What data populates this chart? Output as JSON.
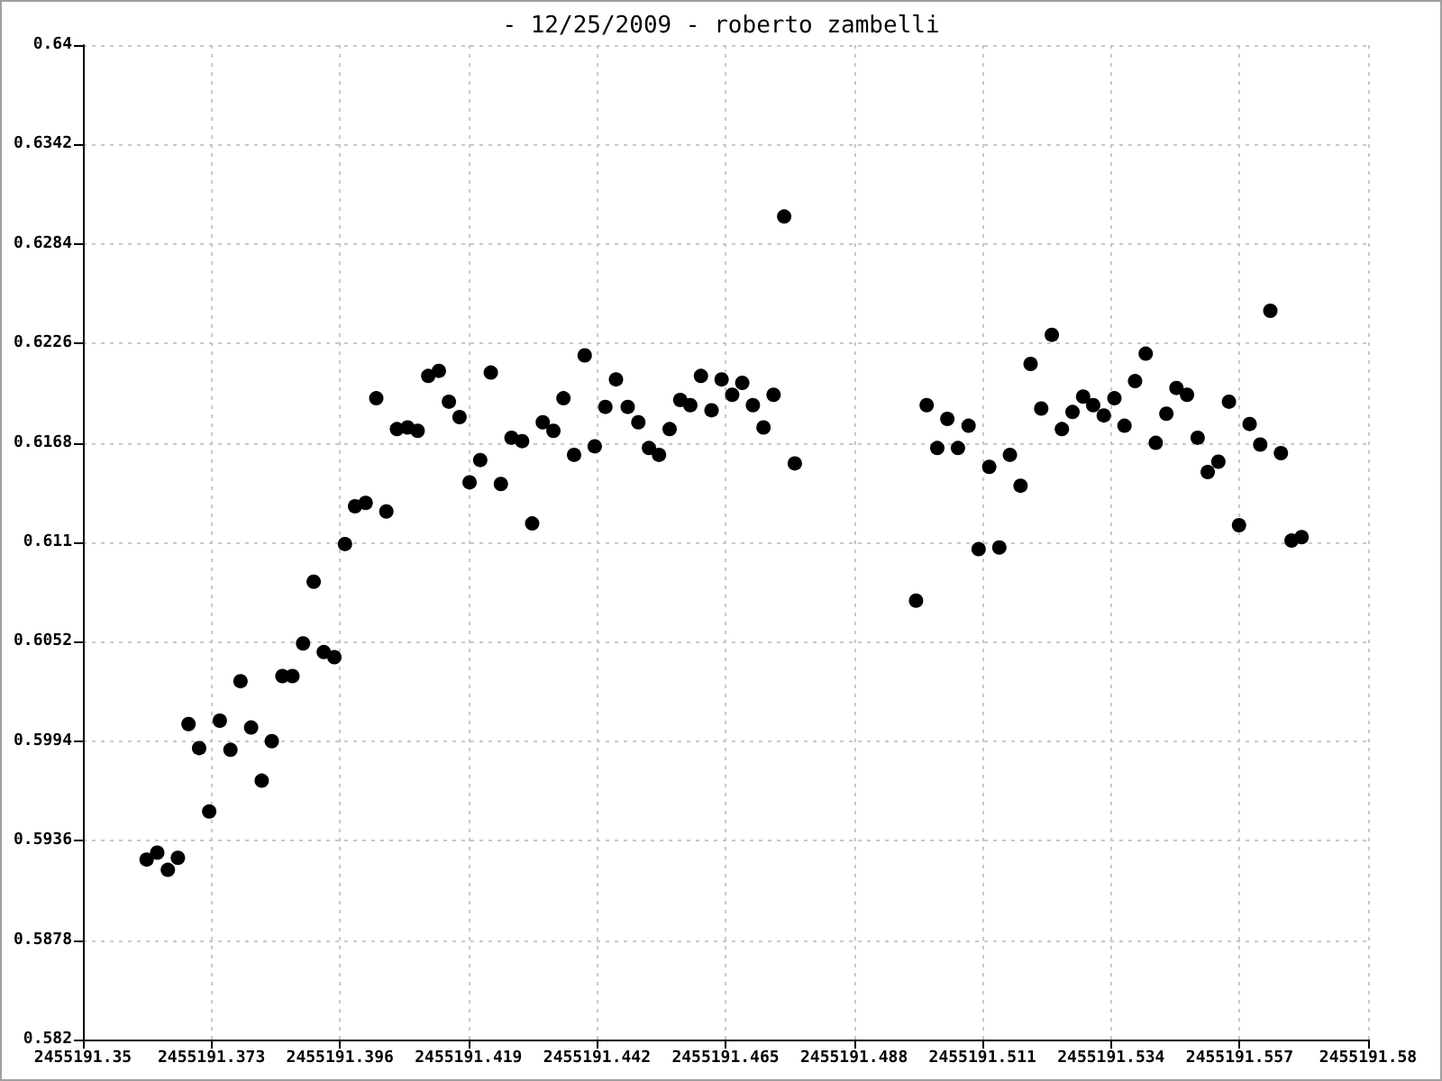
{
  "chart_data": {
    "type": "scatter",
    "title": "- 12/25/2009 - roberto zambelli",
    "series": [
      {
        "color": "#000000",
        "x": [
          2455191.3614,
          2455191.3633,
          2455191.3652,
          2455191.367,
          2455191.3689,
          2455191.3708,
          2455191.3726,
          2455191.3745,
          2455191.3764,
          2455191.3782,
          2455191.3801,
          2455191.382,
          2455191.3838,
          2455191.3857,
          2455191.3875,
          2455191.3894,
          2455191.3913,
          2455191.3931,
          2455191.395,
          2455191.3969,
          2455191.3987,
          2455191.4006,
          2455191.4025,
          2455191.4043,
          2455191.4062,
          2455191.4081,
          2455191.4099,
          2455191.4118,
          2455191.4137,
          2455191.4155,
          2455191.4174,
          2455191.4192,
          2455191.4211,
          2455191.423,
          2455191.4248,
          2455191.4267,
          2455191.4286,
          2455191.4304,
          2455191.4323,
          2455191.4342,
          2455191.436,
          2455191.4379,
          2455191.4398,
          2455191.4416,
          2455191.4435,
          2455191.4454,
          2455191.4475,
          2455191.4494,
          2455191.4513,
          2455191.4531,
          2455191.455,
          2455191.4569,
          2455191.4587,
          2455191.4606,
          2455191.4625,
          2455191.4643,
          2455191.4662,
          2455191.468,
          2455191.4699,
          2455191.4718,
          2455191.4736,
          2455191.4755,
          2455191.4774,
          2455191.4991,
          2455191.501,
          2455191.5029,
          2455191.5047,
          2455191.5066,
          2455191.5085,
          2455191.5103,
          2455191.5122,
          2455191.514,
          2455191.5159,
          2455191.5178,
          2455191.5196,
          2455191.5215,
          2455191.5234,
          2455191.5252,
          2455191.5271,
          2455191.529,
          2455191.5308,
          2455191.5327,
          2455191.5346,
          2455191.5364,
          2455191.5383,
          2455191.5402,
          2455191.542,
          2455191.5439,
          2455191.5457,
          2455191.5476,
          2455191.5495,
          2455191.5513,
          2455191.5532,
          2455191.5551,
          2455191.5569,
          2455191.5588,
          2455191.5607,
          2455191.5625,
          2455191.5644,
          2455191.5663,
          2455191.5681
        ],
        "values": [
          0.5925,
          0.5929,
          0.5919,
          0.5926,
          0.6004,
          0.599,
          0.5953,
          0.6006,
          0.5989,
          0.6029,
          0.6002,
          0.5971,
          0.5994,
          0.6032,
          0.6032,
          0.6051,
          0.6087,
          0.6046,
          0.6043,
          0.6109,
          0.6131,
          0.6133,
          0.6194,
          0.6128,
          0.6176,
          0.6177,
          0.6175,
          0.6207,
          0.621,
          0.6192,
          0.6183,
          0.6145,
          0.6158,
          0.6209,
          0.6144,
          0.6171,
          0.6169,
          0.6121,
          0.618,
          0.6175,
          0.6194,
          0.6161,
          0.6219,
          0.6166,
          0.6189,
          0.6205,
          0.6189,
          0.618,
          0.6165,
          0.6161,
          0.6176,
          0.6193,
          0.619,
          0.6207,
          0.6187,
          0.6205,
          0.6196,
          0.6203,
          0.619,
          0.6177,
          0.6196,
          0.63,
          0.6156,
          0.6076,
          0.619,
          0.6165,
          0.6182,
          0.6165,
          0.6178,
          0.6106,
          0.6154,
          0.6107,
          0.6161,
          0.6143,
          0.6214,
          0.6188,
          0.6231,
          0.6176,
          0.6186,
          0.6195,
          0.619,
          0.6184,
          0.6194,
          0.6178,
          0.6204,
          0.622,
          0.6168,
          0.6185,
          0.62,
          0.6196,
          0.6171,
          0.6151,
          0.6157,
          0.6192,
          0.612,
          0.6179,
          0.6167,
          0.6245,
          0.6162,
          0.6111,
          0.6113
        ]
      }
    ],
    "xlim": [
      2455191.35,
      2455191.58
    ],
    "xticks": [
      2455191.35,
      2455191.373,
      2455191.396,
      2455191.419,
      2455191.442,
      2455191.465,
      2455191.488,
      2455191.511,
      2455191.534,
      2455191.557,
      2455191.58
    ],
    "ylim": [
      0.582,
      0.64
    ],
    "yticks": [
      0.582,
      0.5878,
      0.5936,
      0.5994,
      0.6052,
      0.611,
      0.6168,
      0.6226,
      0.6284,
      0.6342,
      0.64
    ],
    "grid": true,
    "marker": "circle"
  }
}
